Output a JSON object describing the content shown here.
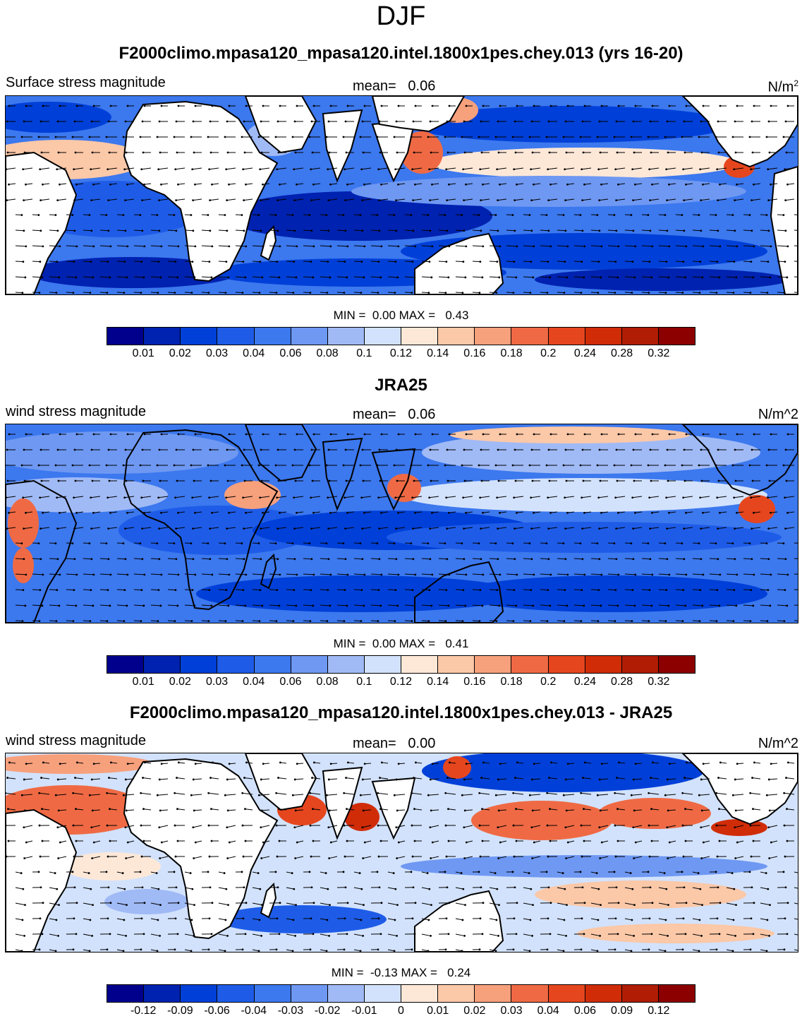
{
  "page_title": "DJF",
  "colors": [
    "#00008c",
    "#0022b0",
    "#0040d8",
    "#1e5ce8",
    "#3c78ee",
    "#6e98f2",
    "#a0baf6",
    "#d2e2fc",
    "#fde8d8",
    "#fbc8a8",
    "#f7a07c",
    "#ef6a44",
    "#e6461e",
    "#d02c08",
    "#b01c04",
    "#8c0000"
  ],
  "panels": [
    {
      "title": "F2000climo.mpasa120_mpasa120.intel.1800x1pes.chey.013 (yrs 16-20)",
      "variable": "Surface stress magnitude",
      "mean_label": "mean=",
      "mean_value": "0.06",
      "units_base": "N/m",
      "units_sup": "2",
      "min_label": "MIN =",
      "min_value": "0.00",
      "max_label": "MAX =",
      "max_value": "0.43",
      "ticks": [
        "0.01",
        "0.02",
        "0.03",
        "0.04",
        "0.06",
        "0.08",
        "0.1",
        "0.12",
        "0.14",
        "0.16",
        "0.18",
        "0.2",
        "0.24",
        "0.28",
        "0.32"
      ]
    },
    {
      "title": "JRA25",
      "variable": "wind stress magnitude",
      "mean_label": "mean=",
      "mean_value": "0.06",
      "units_base": "N/m^2",
      "units_sup": "",
      "min_label": "MIN =",
      "min_value": "0.00",
      "max_label": "MAX =",
      "max_value": "0.41",
      "ticks": [
        "0.01",
        "0.02",
        "0.03",
        "0.04",
        "0.06",
        "0.08",
        "0.1",
        "0.12",
        "0.14",
        "0.16",
        "0.18",
        "0.2",
        "0.24",
        "0.28",
        "0.32"
      ]
    },
    {
      "title": "F2000climo.mpasa120_mpasa120.intel.1800x1pes.chey.013 - JRA25",
      "variable": "wind stress magnitude",
      "mean_label": "mean=",
      "mean_value": "0.00",
      "units_base": "N/m^2",
      "units_sup": "",
      "min_label": "MIN =",
      "min_value": "-0.13",
      "max_label": "MAX =",
      "max_value": "0.24",
      "ticks": [
        "-0.12",
        "-0.09",
        "-0.06",
        "-0.04",
        "-0.03",
        "-0.02",
        "-0.01",
        "0",
        "0.01",
        "0.02",
        "0.03",
        "0.04",
        "0.06",
        "0.09",
        "0.12"
      ]
    }
  ]
}
